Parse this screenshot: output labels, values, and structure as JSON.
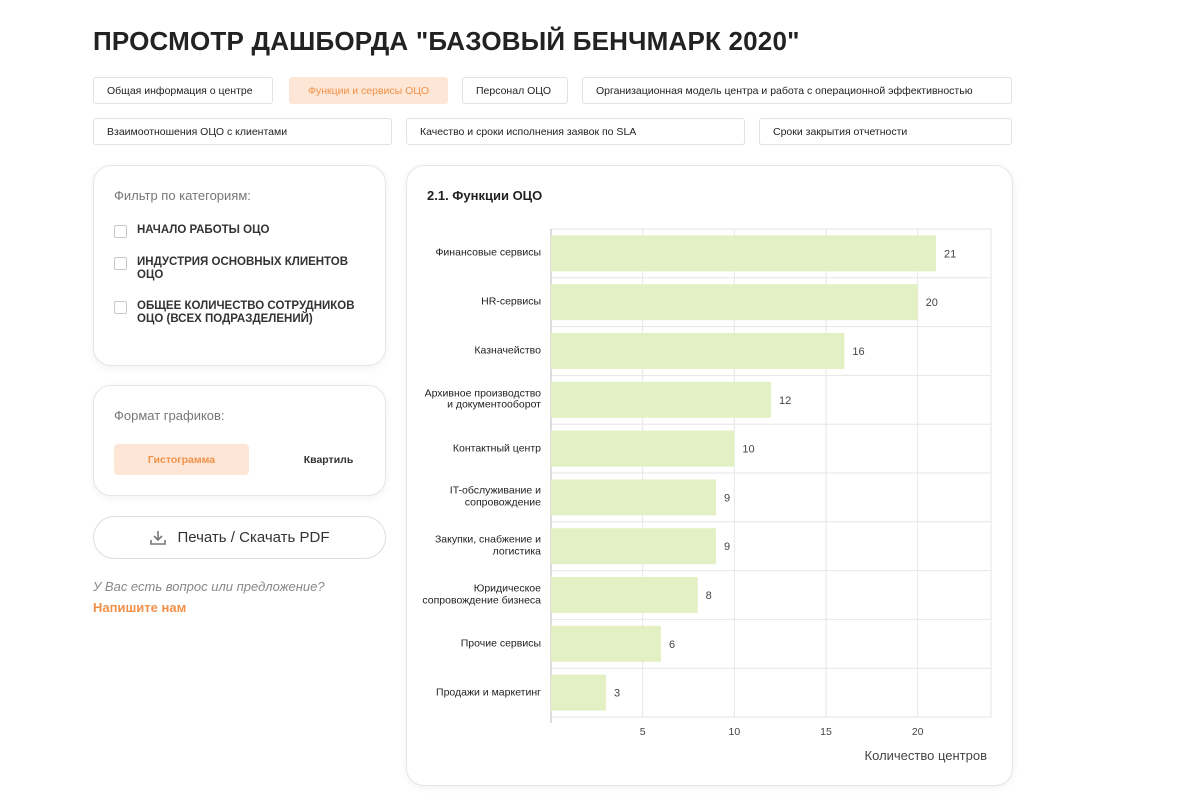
{
  "header": {
    "title": "ПРОСМОТР ДАШБОРДА \"БАЗОВЫЙ БЕНЧМАРК 2020\""
  },
  "tabs": [
    {
      "label": "Общая информация о центре"
    },
    {
      "label": "Функции и сервисы ОЦО",
      "active": true
    },
    {
      "label": "Персонал ОЦО"
    },
    {
      "label": "Организационная модель центра и работа с операционной эффективностью"
    },
    {
      "label": "Взаимоотношения ОЦО с клиентами"
    },
    {
      "label": "Качество и сроки исполнения заявок по SLA"
    },
    {
      "label": "Сроки закрытия отчетности"
    }
  ],
  "filter": {
    "title": "Фильтр по категориям:",
    "options": [
      "НАЧАЛО РАБОТЫ ОЦО",
      "ИНДУСТРИЯ ОСНОВНЫХ КЛИЕНТОВ ОЦО",
      "ОБЩЕЕ КОЛИЧЕСТВО СОТРУДНИКОВ ОЦО (ВСЕХ ПОДРАЗДЕЛЕНИЙ)"
    ]
  },
  "format": {
    "title": "Формат графиков:",
    "options": [
      {
        "label": "Гистограмма",
        "active": true
      },
      {
        "label": "Квартиль"
      }
    ]
  },
  "print_button": "Печать / Скачать PDF",
  "feedback": {
    "question": "У Вас есть вопрос или предложение?",
    "link": "Напишите нам"
  },
  "chart_data": {
    "type": "bar",
    "orientation": "horizontal",
    "title": "2.1. Функции ОЦО",
    "categories": [
      "Финансовые сервисы",
      "HR-сервисы",
      "Казначейство",
      "Архивное производство и документооборот",
      "Контактный центр",
      "IT-обслуживание и сопровождение",
      "Закупки, снабжение и логистика",
      "Юридическое сопровождение бизнеса",
      "Прочие сервисы",
      "Продажи и маркетинг"
    ],
    "values": [
      21,
      20,
      16,
      12,
      10,
      9,
      9,
      8,
      6,
      3
    ],
    "color": "#e2f0c4",
    "xlim": [
      0,
      24
    ],
    "xticks": [
      5,
      10,
      15,
      20
    ],
    "xlabel": "Количество центров",
    "grid": true
  }
}
